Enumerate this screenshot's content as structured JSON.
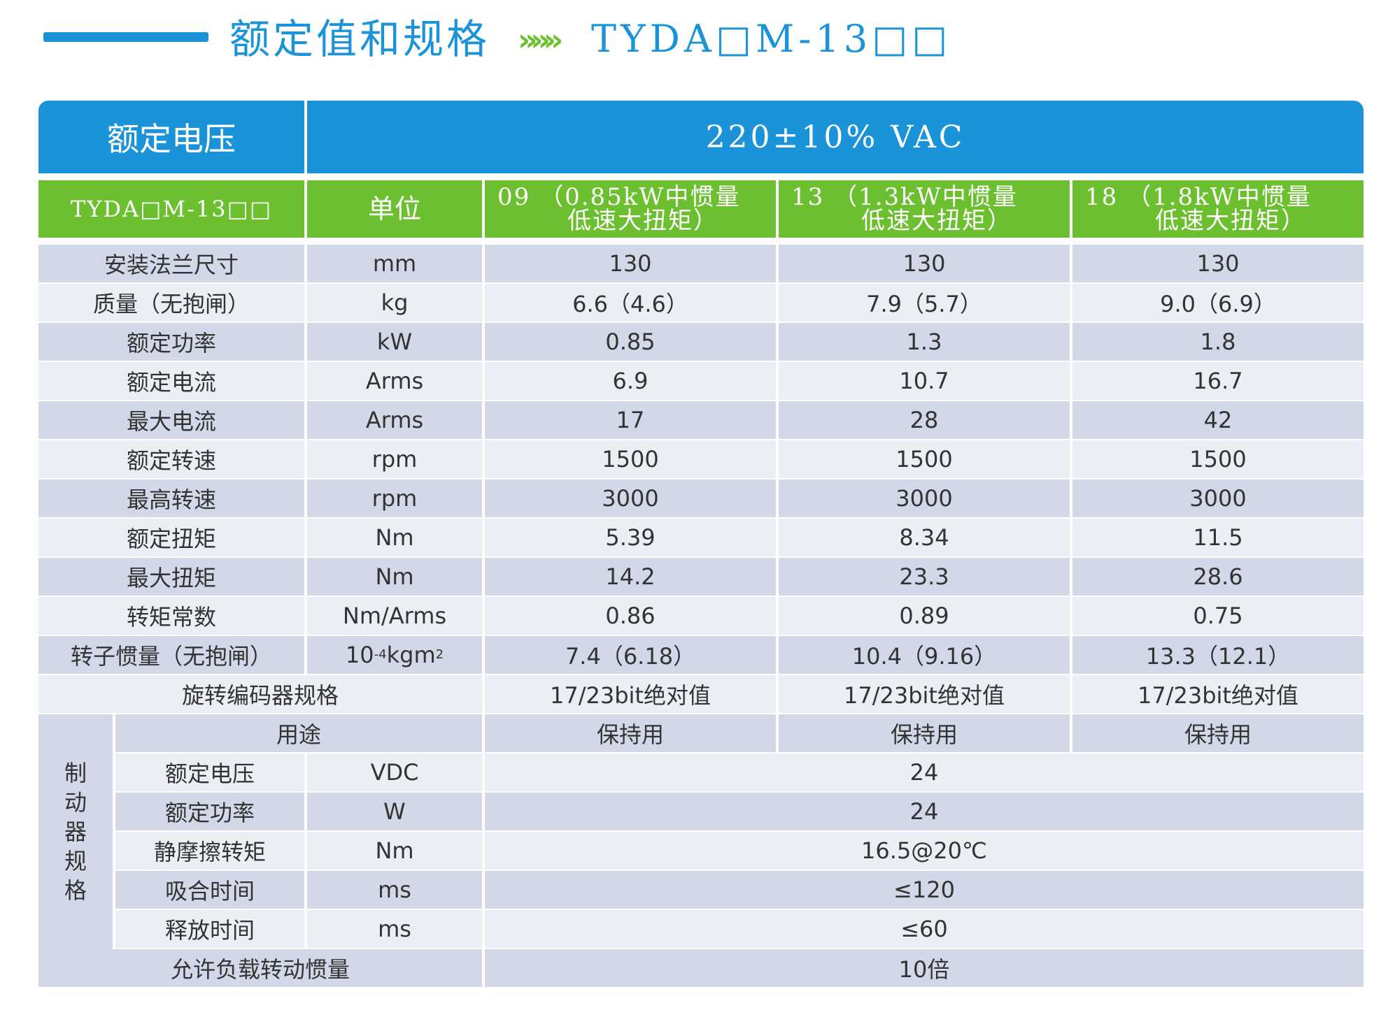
{
  "title": {
    "main": "额定值和规格",
    "arrows": "»»»",
    "model": "TYDA□M-13□□"
  },
  "voltage_row": {
    "label": "额定电压",
    "value": "220±10% VAC"
  },
  "header_row": {
    "model": "TYDA□M-13□□",
    "unit": "单位",
    "columns": [
      {
        "line1": "09 （0.85kW中惯量",
        "line2": "低速大扭矩）"
      },
      {
        "line1": "13 （1.3kW中惯量",
        "line2": "低速大扭矩）"
      },
      {
        "line1": "18 （1.8kW中惯量",
        "line2": "低速大扭矩）"
      }
    ]
  },
  "rows": [
    {
      "label": "安装法兰尺寸",
      "unit": "mm",
      "values": [
        "130",
        "130",
        "130"
      ]
    },
    {
      "label": "质量（无抱闸）",
      "unit": "kg",
      "values": [
        "6.6（4.6）",
        "7.9（5.7）",
        "9.0（6.9）"
      ]
    },
    {
      "label": "额定功率",
      "unit": "kW",
      "values": [
        "0.85",
        "1.3",
        "1.8"
      ]
    },
    {
      "label": "额定电流",
      "unit": "Arms",
      "values": [
        "6.9",
        "10.7",
        "16.7"
      ]
    },
    {
      "label": "最大电流",
      "unit": "Arms",
      "values": [
        "17",
        "28",
        "42"
      ]
    },
    {
      "label": "额定转速",
      "unit": "rpm",
      "values": [
        "1500",
        "1500",
        "1500"
      ]
    },
    {
      "label": "最高转速",
      "unit": "rpm",
      "values": [
        "3000",
        "3000",
        "3000"
      ]
    },
    {
      "label": "额定扭矩",
      "unit": "Nm",
      "values": [
        "5.39",
        "8.34",
        "11.5"
      ]
    },
    {
      "label": "最大扭矩",
      "unit": "Nm",
      "values": [
        "14.2",
        "23.3",
        "28.6"
      ]
    },
    {
      "label": "转矩常数",
      "unit": "Nm/Arms",
      "values": [
        "0.86",
        "0.89",
        "0.75"
      ]
    },
    {
      "label": "转子惯量（无抱闸）",
      "unit_base": "10",
      "unit_exp": "-4",
      "unit_rest": "kgm",
      "unit_exp2": "2",
      "values": [
        "7.4（6.18）",
        "10.4（9.16）",
        "13.3（12.1）"
      ]
    }
  ],
  "encoder": {
    "label": "旋转编码器规格",
    "values": [
      "17/23bit绝对值",
      "17/23bit绝对值",
      "17/23bit绝对值"
    ]
  },
  "brake": {
    "side_label": "制动器规格",
    "usage": {
      "label": "用途",
      "values": [
        "保持用",
        "保持用",
        "保持用"
      ]
    },
    "rows": [
      {
        "label": "额定电压",
        "unit": "VDC",
        "value": "24"
      },
      {
        "label": "额定功率",
        "unit": "W",
        "value": "24"
      },
      {
        "label": "静摩擦转矩",
        "unit": "Nm",
        "value": "16.5@20℃"
      },
      {
        "label": "吸合时间",
        "unit": "ms",
        "value": "≤120"
      },
      {
        "label": "释放时间",
        "unit": "ms",
        "value": "≤60"
      }
    ]
  },
  "inertia": {
    "label": "允许负载转动惯量",
    "value": "10倍"
  },
  "colors": {
    "blue": "#1a93d9",
    "green": "#6cbf2e",
    "row_dark": "#d2d8e7",
    "row_light": "#ebeef5"
  }
}
